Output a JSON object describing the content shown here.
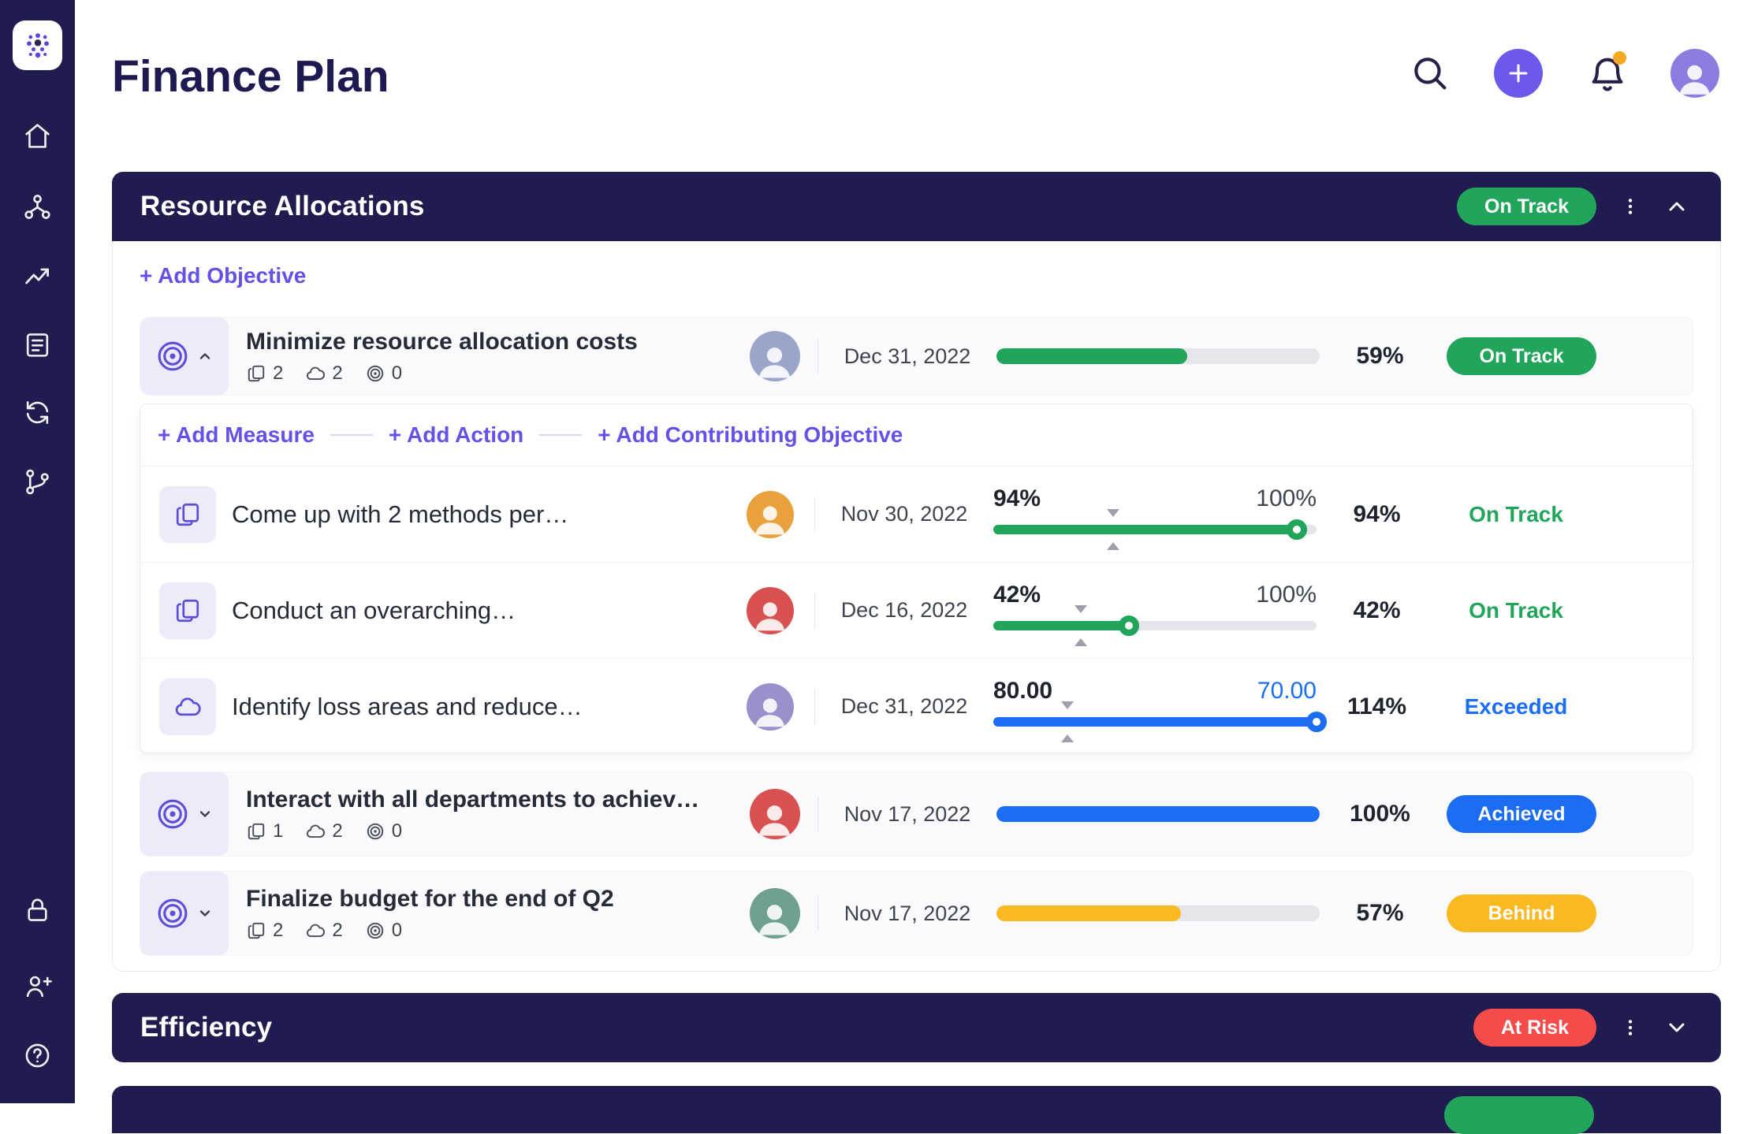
{
  "colors": {
    "navy": "#211C4F",
    "purple": "#6451E7",
    "purple_light": "#EDEBFA",
    "green": "#21A55B",
    "blue": "#1B6EF3",
    "yellow": "#FBB921",
    "red": "#F64B4B",
    "orange": "#F6A723",
    "track": "#E4E6EB"
  },
  "app": {
    "title": "Finance Plan"
  },
  "topbar": {
    "icons": [
      "search-icon",
      "add-button",
      "notifications-icon",
      "user-avatar"
    ]
  },
  "sidebar": {
    "items": [
      "home",
      "org-chart",
      "trends",
      "okr-list",
      "sync",
      "branch",
      "lock",
      "invite-user",
      "help"
    ]
  },
  "section1": {
    "title": "Resource Allocations",
    "status": "On Track",
    "add_objective": "+ Add Objective",
    "add_links": {
      "measure": "+ Add Measure",
      "action": "+ Add Action",
      "contributing": "+ Add Contributing Objective"
    },
    "objectives": [
      {
        "title": "Minimize resource allocation costs",
        "counts": {
          "measures": "2",
          "actions": "2",
          "objectives": "0"
        },
        "date": "Dec 31, 2022",
        "progress": 59,
        "value": "59%",
        "status": "On Track",
        "avatar_bg": "#9AA6C9"
      },
      {
        "title": "Interact with all departments to achiev…",
        "counts": {
          "measures": "1",
          "actions": "2",
          "objectives": "0"
        },
        "date": "Nov 17, 2022",
        "progress": 100,
        "value": "100%",
        "status": "Achieved",
        "avatar_bg": "#D85050"
      },
      {
        "title": "Finalize budget for the end of Q2",
        "counts": {
          "measures": "2",
          "actions": "2",
          "objectives": "0"
        },
        "date": "Nov 17, 2022",
        "progress": 57,
        "value": "57%",
        "status": "Behind",
        "avatar_bg": "#6FA08F"
      }
    ],
    "measures": [
      {
        "title": "Come up with 2 methods per…",
        "date": "Nov 30, 2022",
        "left_label": "94%",
        "right_label": "100%",
        "fill": 94,
        "marker": 37,
        "value": "94%",
        "status": "On Track",
        "avatar_bg": "#E8A13C"
      },
      {
        "title": "Conduct an overarching…",
        "date": "Dec 16, 2022",
        "left_label": "42%",
        "right_label": "100%",
        "fill": 42,
        "marker": 27,
        "value": "42%",
        "status": "On Track",
        "avatar_bg": "#D85050"
      },
      {
        "title": "Identify loss areas and reduce…",
        "date": "Dec 31, 2022",
        "left_label": "80.00",
        "right_label": "70.00",
        "fill": 100,
        "marker": 23,
        "value": "114%",
        "status": "Exceeded",
        "avatar_bg": "#9A90CC"
      }
    ]
  },
  "section2": {
    "title": "Efficiency",
    "status": "At Risk"
  },
  "section3": {
    "status_color": "#21A55B"
  }
}
